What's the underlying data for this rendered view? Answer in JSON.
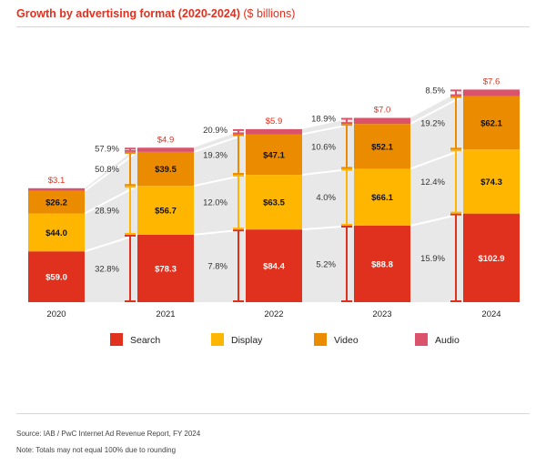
{
  "header": {
    "title": "Growth by advertising format (2020-2024)",
    "unit": "($ billions)"
  },
  "chart_data": {
    "type": "bar",
    "stacked": true,
    "title": "Growth by advertising format (2020-2024) ($ billions)",
    "categories": [
      "2020",
      "2021",
      "2022",
      "2023",
      "2024"
    ],
    "series": [
      {
        "name": "Search",
        "color": "#E0301E",
        "values": [
          59.0,
          78.3,
          84.4,
          88.8,
          102.9
        ],
        "value_labels": [
          "$59.0",
          "$78.3",
          "$84.4",
          "$88.8",
          "$102.9"
        ],
        "growth_labels": [
          "32.8%",
          "7.8%",
          "5.2%",
          "15.9%"
        ]
      },
      {
        "name": "Display",
        "color": "#FFB600",
        "values": [
          44.0,
          56.7,
          63.5,
          66.1,
          74.3
        ],
        "value_labels": [
          "$44.0",
          "$56.7",
          "$63.5",
          "$66.1",
          "$74.3"
        ],
        "growth_labels": [
          "28.9%",
          "12.0%",
          "4.0%",
          "12.4%"
        ]
      },
      {
        "name": "Video",
        "color": "#EB8C00",
        "values": [
          26.2,
          39.5,
          47.1,
          52.1,
          62.1
        ],
        "value_labels": [
          "$26.2",
          "$39.5",
          "$47.1",
          "$52.1",
          "$62.1"
        ],
        "growth_labels": [
          "50.8%",
          "19.3%",
          "10.6%",
          "19.2%"
        ]
      },
      {
        "name": "Audio",
        "color": "#DB536A",
        "values": [
          3.1,
          4.9,
          5.9,
          7.0,
          7.6
        ],
        "value_labels": [
          "$3.1",
          "$4.9",
          "$5.9",
          "$7.0",
          "$7.6"
        ],
        "growth_labels": [
          "57.9%",
          "20.9%",
          "18.9%",
          "8.5%"
        ]
      }
    ],
    "legend": [
      "Search",
      "Display",
      "Video",
      "Audio"
    ],
    "legend_position": "bottom",
    "ylim": [
      0,
      260
    ],
    "grid": false
  },
  "footer": {
    "source": "Source: IAB / PwC Internet Ad Revenue Report, FY 2024",
    "note": "Note: Totals may not equal 100% due to rounding"
  }
}
